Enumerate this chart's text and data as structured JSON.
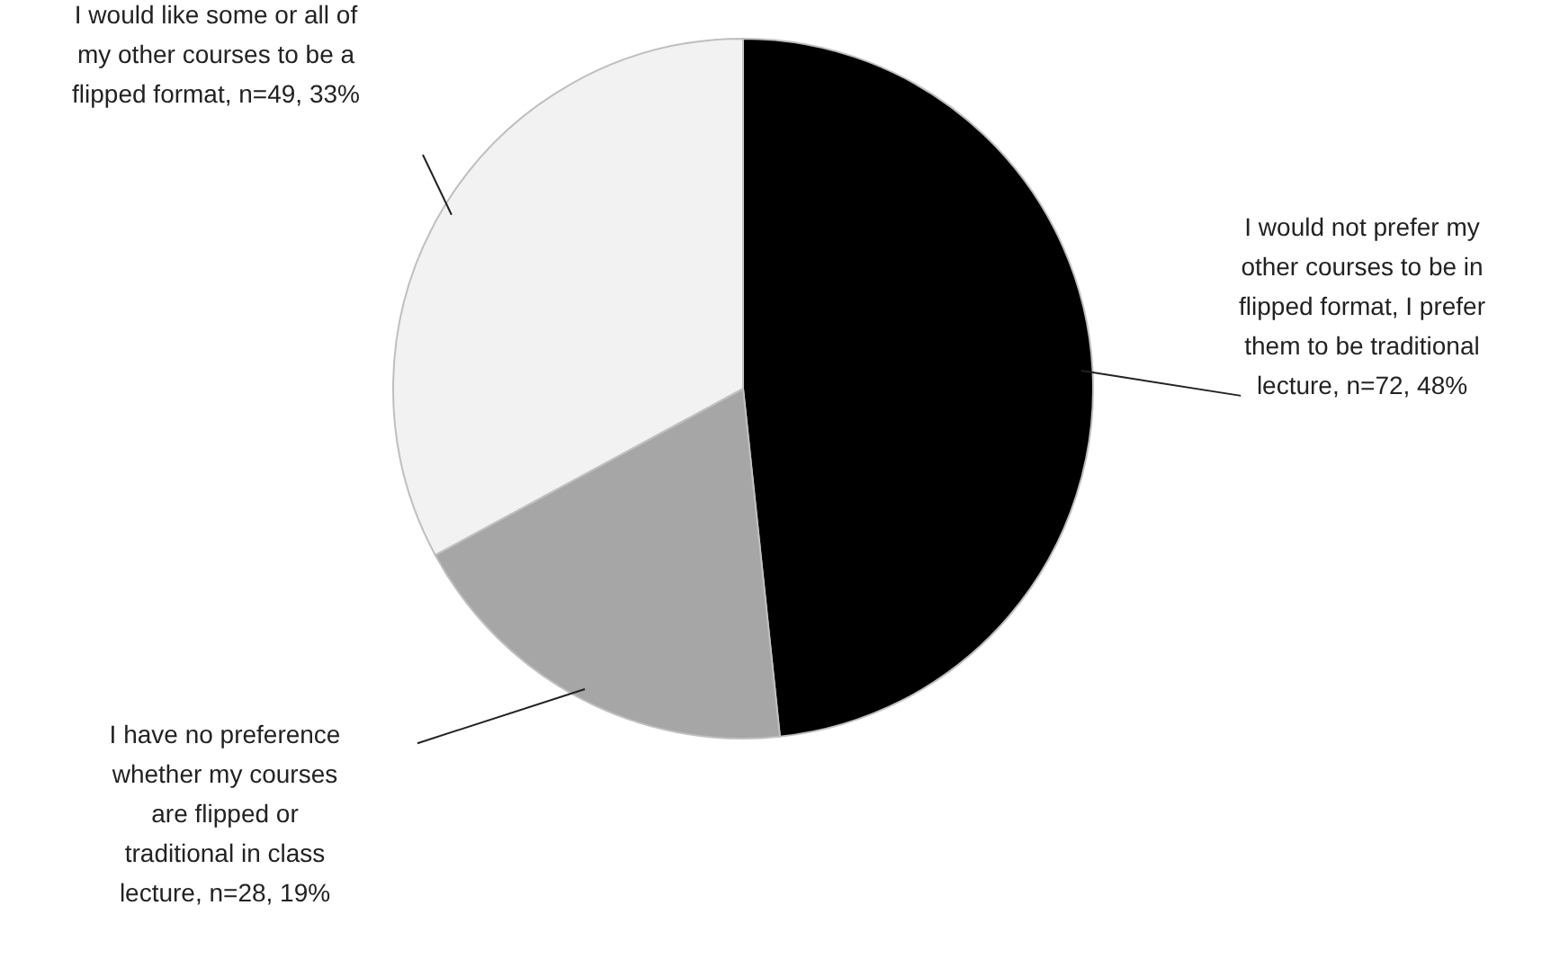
{
  "chart_data": {
    "type": "pie",
    "categories": [
      "I would not prefer my other courses to be in flipped format, I prefer them to be traditional lecture, n=72, 48%",
      "I have no preference whether my courses are flipped or traditional in class lecture, n=28, 19%",
      "I would like some or all of my other courses to be a flipped format, n=49, 33%"
    ],
    "values": [
      72,
      28,
      49
    ],
    "colors": [
      "#000000",
      "#a6a6a6",
      "#f2f2f2"
    ],
    "legend": false
  }
}
